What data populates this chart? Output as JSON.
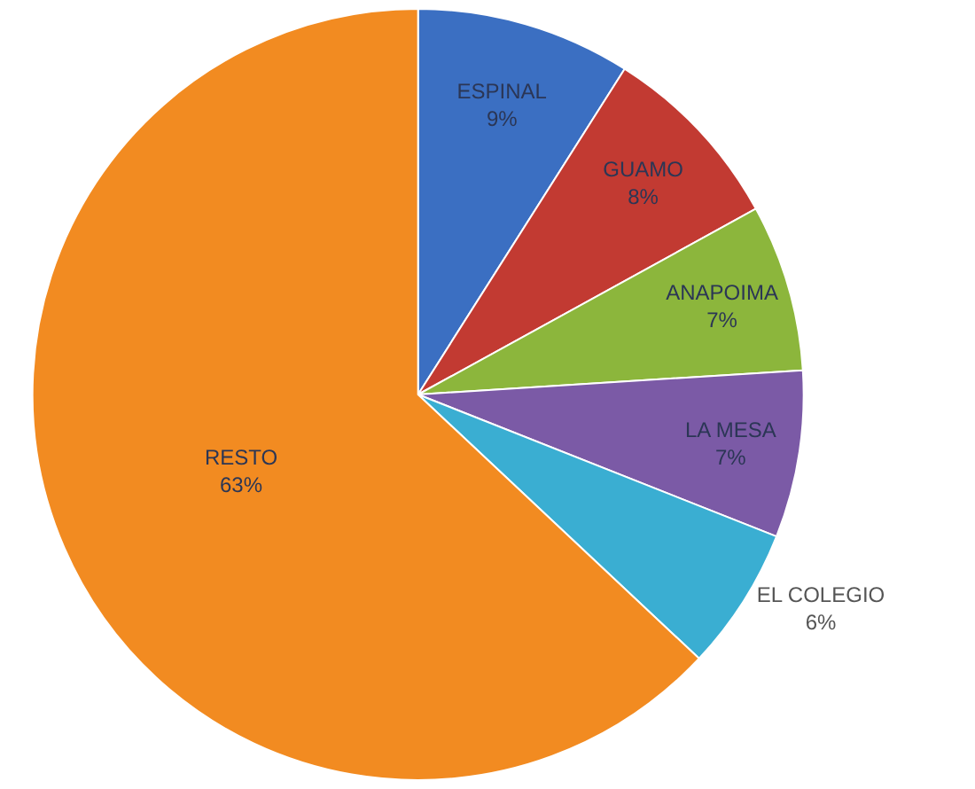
{
  "chart_data": {
    "type": "pie",
    "categories": [
      "ESPINAL",
      "GUAMO",
      "ANAPOIMA",
      "LA MESA",
      "EL COLEGIO",
      "RESTO"
    ],
    "values": [
      9,
      8,
      7,
      7,
      6,
      63
    ],
    "value_labels": [
      "9%",
      "8%",
      "7%",
      "7%",
      "6%",
      "63%"
    ],
    "colors": [
      "#3b6fc2",
      "#c23a32",
      "#8cb63c",
      "#7b5aa6",
      "#3aaed2",
      "#f28b21"
    ],
    "legend": false
  }
}
